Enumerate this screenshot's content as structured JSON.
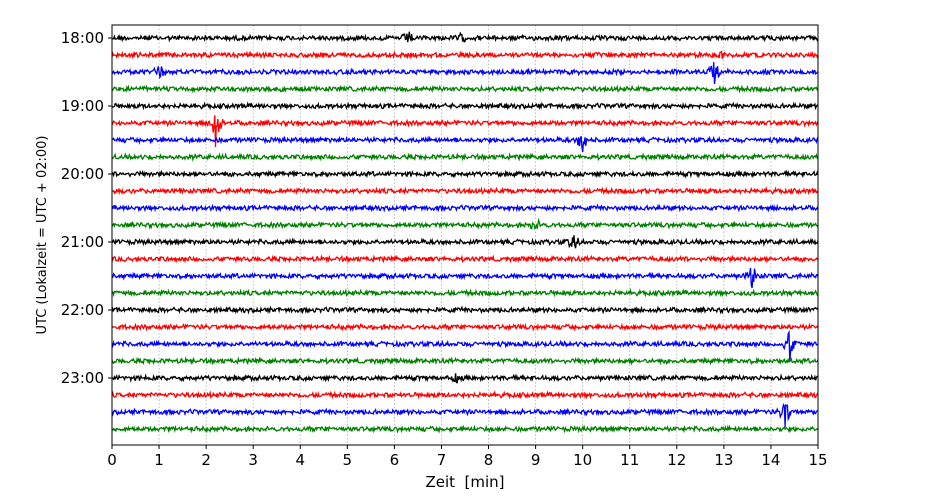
{
  "chart_data": {
    "type": "line",
    "title": "",
    "xlabel": "Zeit  [min]",
    "ylabel": "UTC (Lokalzeit = UTC + 02:00)",
    "xlim": [
      0,
      15
    ],
    "x_ticks": [
      "0",
      "1",
      "2",
      "3",
      "4",
      "5",
      "6",
      "7",
      "8",
      "9",
      "10",
      "11",
      "12",
      "13",
      "14",
      "15"
    ],
    "y_ticks": [
      "18:00",
      "19:00",
      "20:00",
      "21:00",
      "22:00",
      "23:00"
    ],
    "grid": "vertical dotted at each minute",
    "trace_interval_minutes": 15,
    "trace_count": 24,
    "colors": [
      "#000000",
      "#ff0000",
      "#0000ff",
      "#008000"
    ],
    "events": [
      {
        "trace": 0,
        "minute": 6.3,
        "amplitude": 2.5
      },
      {
        "trace": 0,
        "minute": 7.4,
        "amplitude": 1.5
      },
      {
        "trace": 1,
        "minute": 12.9,
        "amplitude": 1.5
      },
      {
        "trace": 2,
        "minute": 1.0,
        "amplitude": 2.5
      },
      {
        "trace": 2,
        "minute": 12.8,
        "amplitude": 4
      },
      {
        "trace": 5,
        "minute": 2.2,
        "amplitude": 8
      },
      {
        "trace": 6,
        "minute": 10.0,
        "amplitude": 4
      },
      {
        "trace": 11,
        "minute": 9.0,
        "amplitude": 2
      },
      {
        "trace": 12,
        "minute": 9.8,
        "amplitude": 3
      },
      {
        "trace": 14,
        "minute": 13.6,
        "amplitude": 4
      },
      {
        "trace": 18,
        "minute": 14.4,
        "amplitude": 6
      },
      {
        "trace": 20,
        "minute": 7.3,
        "amplitude": 1.5
      },
      {
        "trace": 22,
        "minute": 14.3,
        "amplitude": 5
      }
    ]
  }
}
